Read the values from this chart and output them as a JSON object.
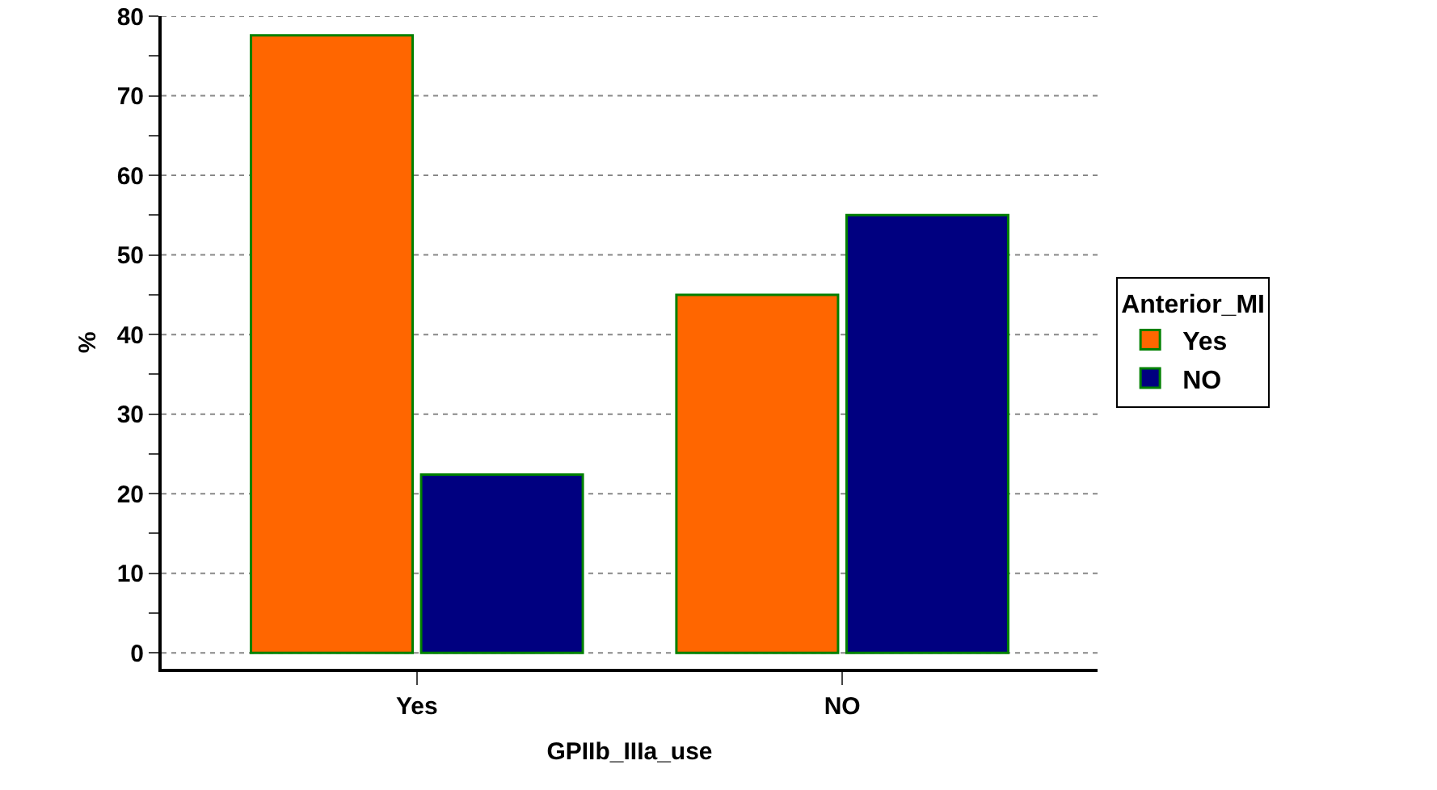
{
  "chart_data": {
    "type": "bar",
    "xlabel": "GPIIb_IIIa_use",
    "ylabel": "%",
    "legend_title": "Anterior_MI",
    "categories": [
      "Yes",
      "NO"
    ],
    "series": [
      {
        "name": "Yes",
        "color": "#ff6600",
        "values": [
          77.6,
          45
        ]
      },
      {
        "name": "NO",
        "color": "#000080",
        "values": [
          22.4,
          55
        ]
      }
    ],
    "ylim": [
      -2,
      80
    ],
    "yticks": [
      0,
      {
        "value": 5,
        "label": null
      },
      10,
      {
        "value": 15,
        "label": null
      },
      20,
      {
        "value": 25,
        "label": null
      },
      30,
      {
        "value": 35,
        "label": null
      },
      40,
      {
        "value": 45,
        "label": null
      },
      50,
      {
        "value": 55,
        "label": null
      },
      60,
      {
        "value": 65,
        "label": null
      },
      70,
      {
        "value": 75,
        "label": null
      },
      80
    ],
    "grid": "y",
    "legend": "right"
  }
}
